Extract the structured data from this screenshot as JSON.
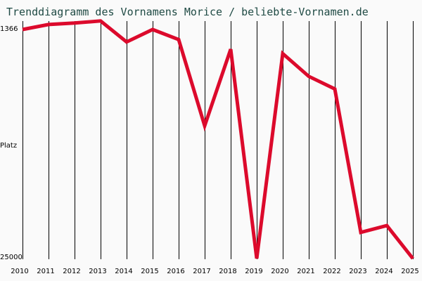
{
  "chart_data": {
    "type": "line",
    "title": "Trenddiagramm des Vornamens Morice / beliebte-Vornamen.de",
    "xlabel": "",
    "ylabel": "Platz",
    "y_axis_inverted": true,
    "ylim": [
      1366,
      25000
    ],
    "y_tick_labels": [
      "1366",
      "Platz",
      "25000"
    ],
    "grid": "vertical",
    "line_color": "#dc0a2c",
    "categories": [
      "2010",
      "2011",
      "2012",
      "2013",
      "2014",
      "2015",
      "2016",
      "2017",
      "2018",
      "2019",
      "2020",
      "2021",
      "2022",
      "2023",
      "2024",
      "2025"
    ],
    "series": [
      {
        "name": "Morice",
        "values": [
          1366,
          850,
          700,
          480,
          2650,
          1366,
          2400,
          11300,
          3400,
          25000,
          3850,
          6200,
          7500,
          22300,
          21600,
          25000
        ]
      }
    ]
  },
  "header": {
    "title": "Trenddiagramm des Vornamens Morice / beliebte-Vornamen.de"
  },
  "axis": {
    "y_top": "1366",
    "y_mid": "Platz",
    "y_bottom": "25000",
    "x_ticks": [
      "2010",
      "2011",
      "2012",
      "2013",
      "2014",
      "2015",
      "2016",
      "2017",
      "2018",
      "2019",
      "2020",
      "2021",
      "2022",
      "2023",
      "2024",
      "2025"
    ]
  },
  "style": {
    "line_color": "#dc0a2c",
    "title_color": "#1f4a44",
    "grid_color": "#000000",
    "background": "#fafafa"
  }
}
